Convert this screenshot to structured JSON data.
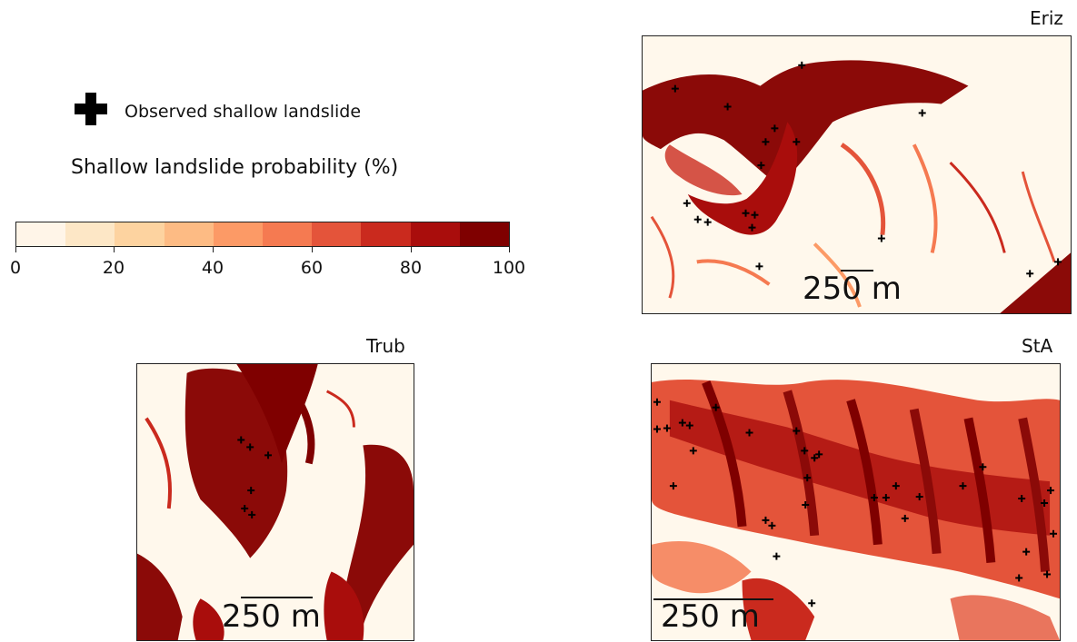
{
  "legend": {
    "marker_label": "Observed shallow landslide",
    "colorbar_title": "Shallow landslide probability (%)",
    "ticks": [
      "0",
      "20",
      "40",
      "60",
      "80",
      "100"
    ],
    "bins": [
      "#fff5e8",
      "#fde7c6",
      "#fdd3a0",
      "#fdbb84",
      "#fc9a66",
      "#f57a51",
      "#e4543a",
      "#ca2a1e",
      "#a90d0c",
      "#7f0000"
    ]
  },
  "panels": {
    "eriz": {
      "title": "Eriz",
      "scale": "250 m"
    },
    "trub": {
      "title": "Trub",
      "scale": "250 m"
    },
    "sta": {
      "title": "StA",
      "scale": "250 m"
    }
  },
  "colors": {
    "high": "#7f0000",
    "mid": "#ca2a1e",
    "low": "#fdbb84",
    "background": "#fff8ec",
    "marker": "#000000"
  }
}
